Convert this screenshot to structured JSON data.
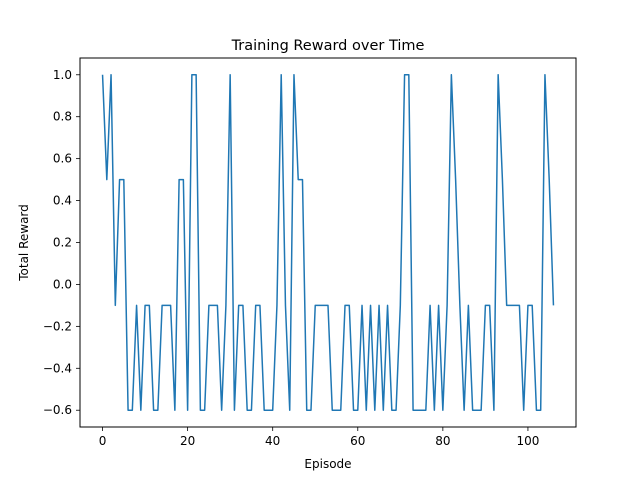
{
  "chart_data": {
    "type": "line",
    "title": "Training Reward over Time",
    "xlabel": "Episode",
    "ylabel": "Total Reward",
    "xlim": [
      -5.3,
      111.3
    ],
    "ylim": [
      -0.68,
      1.08
    ],
    "xticks": [
      0,
      20,
      40,
      60,
      80,
      100
    ],
    "yticks": [
      -0.6,
      -0.4,
      -0.2,
      0.0,
      0.2,
      0.4,
      0.6,
      0.8,
      1.0
    ],
    "ytick_labels": [
      "−0.6",
      "−0.4",
      "−0.2",
      "0.0",
      "0.2",
      "0.4",
      "0.6",
      "0.8",
      "1.0"
    ],
    "grid": false,
    "line_color": "#1f77b4",
    "series": [
      {
        "values": [
          1.0,
          0.5,
          1.0,
          -0.1,
          0.5,
          0.5,
          -0.6,
          -0.6,
          -0.1,
          -0.6,
          -0.1,
          -0.1,
          -0.6,
          -0.6,
          -0.1,
          -0.1,
          -0.1,
          -0.6,
          0.5,
          0.5,
          -0.6,
          1.0,
          1.0,
          -0.6,
          -0.6,
          -0.1,
          -0.1,
          -0.1,
          -0.6,
          -0.1,
          1.0,
          -0.6,
          -0.1,
          -0.1,
          -0.6,
          -0.6,
          -0.1,
          -0.1,
          -0.6,
          -0.6,
          -0.6,
          -0.1,
          1.0,
          -0.1,
          -0.6,
          1.0,
          0.5,
          0.5,
          -0.6,
          -0.6,
          -0.1,
          -0.1,
          -0.1,
          -0.1,
          -0.6,
          -0.6,
          -0.6,
          -0.1,
          -0.1,
          -0.6,
          -0.6,
          -0.1,
          -0.6,
          -0.1,
          -0.6,
          -0.1,
          -0.6,
          -0.1,
          -0.6,
          -0.6,
          -0.1,
          1.0,
          1.0,
          -0.6,
          -0.6,
          -0.6,
          -0.6,
          -0.1,
          -0.6,
          -0.1,
          -0.6,
          -0.1,
          1.0,
          0.5,
          -0.1,
          -0.6,
          -0.1,
          -0.6,
          -0.6,
          -0.6,
          -0.1,
          -0.1,
          -0.6,
          1.0,
          0.5,
          -0.1,
          -0.1,
          -0.1,
          -0.1,
          -0.6,
          -0.1,
          -0.1,
          -0.6,
          -0.6,
          1.0,
          0.5,
          -0.1
        ]
      }
    ]
  }
}
